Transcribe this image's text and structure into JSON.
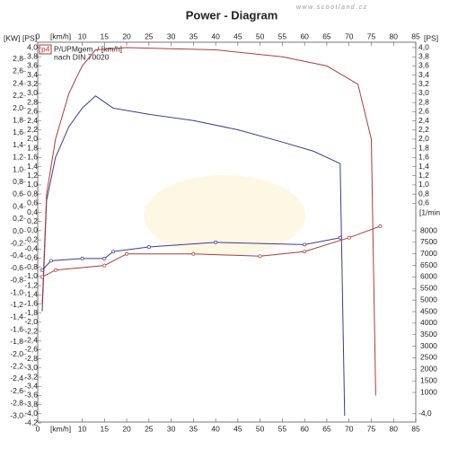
{
  "watermark": "www.scootland.cz",
  "chart_data": {
    "type": "line",
    "title": "Power - Diagram",
    "y_label": "[KW]",
    "y2_label": "[PS]",
    "y3_label": "[1/min",
    "x_unit": "[km/h]",
    "legend_code": "p4",
    "legend_text": "P/UPMgem. / [km/h]",
    "legend_note": "nach DIN 70020",
    "xlim": [
      0,
      85
    ],
    "xticks": [
      0,
      10,
      15,
      20,
      25,
      30,
      35,
      40,
      45,
      50,
      55,
      60,
      65,
      70,
      75,
      80,
      85
    ],
    "ylim": [
      -3.0,
      3.0
    ],
    "yticks": [
      {
        "value": 2.8,
        "label": "2,8"
      },
      {
        "value": 2.6,
        "label": "2,6"
      },
      {
        "value": 2.4,
        "label": "2,4"
      },
      {
        "value": 2.2,
        "label": "2,2"
      },
      {
        "value": 2.0,
        "label": "2,0"
      },
      {
        "value": 1.8,
        "label": "1,8"
      },
      {
        "value": 1.6,
        "label": "1,6"
      },
      {
        "value": 1.4,
        "label": "1,4"
      },
      {
        "value": 1.2,
        "label": "1,2"
      },
      {
        "value": 1.0,
        "label": "1,0"
      },
      {
        "value": 0.8,
        "label": "0,8"
      },
      {
        "value": 0.6,
        "label": "0,6"
      },
      {
        "value": 0.4,
        "label": "0,4"
      },
      {
        "value": 0.2,
        "label": "0,2"
      },
      {
        "value": 0,
        "label": "0,0"
      },
      {
        "value": -0.2,
        "label": "-0,2"
      },
      {
        "value": -0.4,
        "label": "-0,4"
      },
      {
        "value": -0.6,
        "label": "-0,6"
      },
      {
        "value": -0.8,
        "label": "-0,8"
      },
      {
        "value": -1.0,
        "label": "-1,0"
      },
      {
        "value": -1.2,
        "label": "-1,2"
      },
      {
        "value": -1.4,
        "label": "-1,4"
      },
      {
        "value": -1.6,
        "label": "-1,6"
      },
      {
        "value": -1.8,
        "label": "-1,8"
      },
      {
        "value": -2.0,
        "label": "-2,0"
      },
      {
        "value": -2.2,
        "label": "-2,2"
      },
      {
        "value": -2.4,
        "label": "-2,4"
      },
      {
        "value": -2.6,
        "label": "-2,6"
      },
      {
        "value": -2.8,
        "label": "-2,8"
      },
      {
        "value": -3.0,
        "label": "-3,0"
      }
    ],
    "y2lim": [
      -4.2,
      4.0
    ],
    "y2ticks": [
      {
        "value": 4.0,
        "label": "4,0"
      },
      {
        "value": 3.8,
        "label": "3,8"
      },
      {
        "value": 3.6,
        "label": "3,6"
      },
      {
        "value": 3.4,
        "label": "3,4"
      },
      {
        "value": 3.2,
        "label": "3,2"
      },
      {
        "value": 3.0,
        "label": "3,0"
      },
      {
        "value": 2.8,
        "label": "2,8"
      },
      {
        "value": 2.6,
        "label": "2,6"
      },
      {
        "value": 2.4,
        "label": "2,4"
      },
      {
        "value": 2.2,
        "label": "2,2"
      },
      {
        "value": 2.0,
        "label": "2,0"
      },
      {
        "value": 1.8,
        "label": "1,8"
      },
      {
        "value": 1.6,
        "label": "1,6"
      },
      {
        "value": 1.4,
        "label": "1,4"
      },
      {
        "value": 1.2,
        "label": "1,2"
      },
      {
        "value": 1.0,
        "label": "1,0"
      },
      {
        "value": 0.8,
        "label": "0,8"
      },
      {
        "value": 0.6,
        "label": "0,6"
      },
      {
        "value": 0.4,
        "label": "0,4"
      },
      {
        "value": 0.2,
        "label": "0,2"
      },
      {
        "value": 0,
        "label": "0,0"
      },
      {
        "value": -0.2,
        "label": "-0,2"
      },
      {
        "value": -0.4,
        "label": "-0,4"
      },
      {
        "value": -0.6,
        "label": "-0,6"
      },
      {
        "value": -0.8,
        "label": "-0,8"
      },
      {
        "value": -1.0,
        "label": "-1,0"
      },
      {
        "value": -1.2,
        "label": "-1,2"
      },
      {
        "value": -1.4,
        "label": "-1,4"
      },
      {
        "value": -1.6,
        "label": "-1,6"
      },
      {
        "value": -1.8,
        "label": "-1,8"
      },
      {
        "value": -2.0,
        "label": "-2,0"
      },
      {
        "value": -2.2,
        "label": "-2,2"
      },
      {
        "value": -2.4,
        "label": "-2,4"
      },
      {
        "value": -2.6,
        "label": "-2,6"
      },
      {
        "value": -2.8,
        "label": "-2,8"
      },
      {
        "value": -3.0,
        "label": "-3,0"
      },
      {
        "value": -3.2,
        "label": "-3,2"
      },
      {
        "value": -3.4,
        "label": "-3,4"
      },
      {
        "value": -3.6,
        "label": "-3,6"
      },
      {
        "value": -3.8,
        "label": "-3,8"
      },
      {
        "value": -4.0,
        "label": "-4,0"
      },
      {
        "value": -4.2,
        "label": "-4,2"
      }
    ],
    "y3lim": [
      1000,
      8000
    ],
    "y3ticks": [
      8000,
      7500,
      7000,
      6500,
      6000,
      5500,
      5000,
      4500,
      4000,
      3500,
      3000,
      2500,
      2000,
      1500,
      1000
    ],
    "series": [
      {
        "color": "#3b3b8f",
        "axis": "y",
        "x": [
          1,
          2,
          4,
          7,
          10,
          13,
          15,
          17,
          25,
          35,
          45,
          55,
          62,
          68,
          69
        ],
        "values": [
          -1.3,
          0.5,
          1.2,
          1.7,
          2.0,
          2.2,
          2.1,
          2.0,
          1.9,
          1.8,
          1.65,
          1.45,
          1.3,
          1.1,
          -3.0
        ]
      },
      {
        "color": "#b03a3a",
        "axis": "y2",
        "x": [
          1,
          2,
          4,
          7,
          10,
          13,
          20,
          40,
          55,
          65,
          72,
          75,
          76
        ],
        "values": [
          -1.6,
          0.8,
          2.0,
          3.0,
          3.6,
          3.95,
          4.0,
          3.95,
          3.8,
          3.6,
          3.2,
          2.0,
          -3.6
        ]
      },
      {
        "color": "#3b3b8f",
        "axis": "y3",
        "markers": true,
        "x": [
          1,
          3,
          10,
          15,
          17,
          25,
          40,
          60,
          68
        ],
        "values": [
          6300,
          6700,
          6800,
          6800,
          7100,
          7300,
          7500,
          7400,
          7700
        ]
      },
      {
        "color": "#b03a3a",
        "axis": "y3",
        "markers": true,
        "x": [
          1,
          4,
          15,
          20,
          35,
          50,
          60,
          70,
          77
        ],
        "values": [
          6000,
          6300,
          6500,
          7000,
          7000,
          6900,
          7100,
          7700,
          8200
        ]
      }
    ]
  }
}
